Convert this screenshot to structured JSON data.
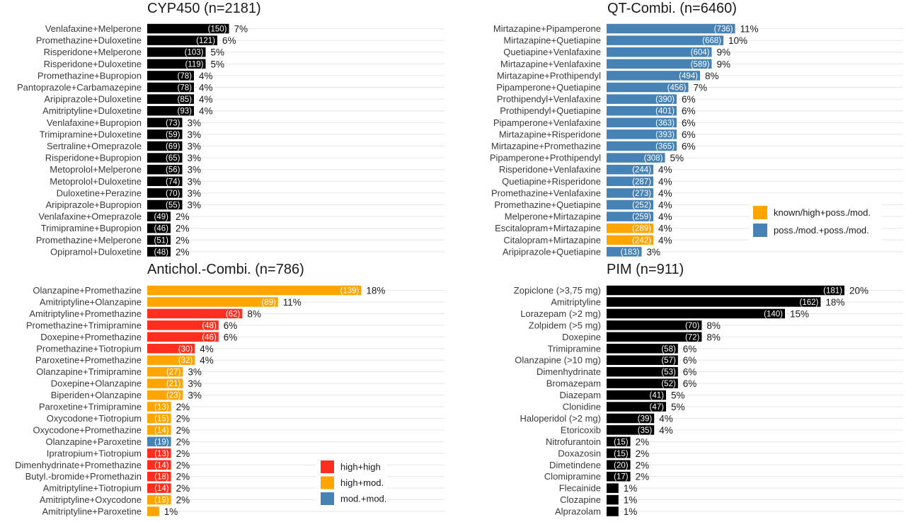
{
  "colors": {
    "black": "#000000",
    "blue": "#4682b4",
    "orange": "#ffa500",
    "red": "#ff2e1f"
  },
  "chart_data": [
    {
      "type": "bar",
      "orientation": "horizontal",
      "title": "CYP450 (n=2181)",
      "grid": true,
      "categories": [
        "Venlafaxine+Melperone",
        "Promethazine+Duloxetine",
        "Risperidone+Melperone",
        "Risperidone+Duloxetine",
        "Promethazine+Bupropion",
        "Pantoprazole+Carbamazepine",
        "Aripiprazole+Duloxetine",
        "Amitriptyline+Duloxetine",
        "Venlafaxine+Bupropion",
        "Trimipramine+Duloxetine",
        "Sertraline+Omeprazole",
        "Risperidone+Bupropion",
        "Metoprolol+Melperone",
        "Metoprolol+Duloxetine",
        "Duloxetine+Perazine",
        "Aripiprazole+Bupropion",
        "Venlafaxine+Omeprazole",
        "Trimipramine+Bupropion",
        "Promethazine+Melperone",
        "Opipramol+Duloxetine"
      ],
      "counts": [
        150,
        121,
        103,
        119,
        78,
        78,
        85,
        93,
        73,
        59,
        69,
        65,
        56,
        74,
        70,
        55,
        49,
        46,
        51,
        48
      ],
      "percent_labels": [
        "7%",
        "6%",
        "5%",
        "5%",
        "4%",
        "4%",
        "4%",
        "4%",
        "3%",
        "3%",
        "3%",
        "3%",
        "3%",
        "3%",
        "3%",
        "3%",
        "2%",
        "2%",
        "2%",
        "2%"
      ],
      "values": [
        7,
        6,
        5,
        5,
        4,
        4,
        4,
        4,
        3,
        3,
        3,
        3,
        3,
        3,
        3,
        3,
        2,
        2,
        2,
        2
      ],
      "color_keys": [
        "black",
        "black",
        "black",
        "black",
        "black",
        "black",
        "black",
        "black",
        "black",
        "black",
        "black",
        "black",
        "black",
        "black",
        "black",
        "black",
        "black",
        "black",
        "black",
        "black"
      ],
      "legend": null
    },
    {
      "type": "bar",
      "orientation": "horizontal",
      "title": "QT-Combi. (n=6460)",
      "grid": true,
      "categories": [
        "Mirtazapine+Pipamperone",
        "Mirtazapine+Quetiapine",
        "Quetiapine+Venlafaxine",
        "Mirtazapine+Venlafaxine",
        "Mirtazapine+Prothipendyl",
        "Pipamperone+Quetiapine",
        "Prothipendyl+Venlafaxine",
        "Prothipendyl+Quetiapine",
        "Pipamperone+Venlafaxine",
        "Mirtazapine+Risperidone",
        "Mirtazapine+Promethazine",
        "Pipamperone+Prothipendyl",
        "Risperidone+Venlafaxine",
        "Quetiapine+Risperidone",
        "Promethazine+Venlafaxine",
        "Promethazine+Quetiapine",
        "Melperone+Mirtazapine",
        "Escitalopram+Mirtazapine",
        "Citalopram+Mirtazapine",
        "Aripiprazole+Quetiapine"
      ],
      "counts": [
        736,
        668,
        604,
        589,
        494,
        456,
        390,
        401,
        363,
        393,
        365,
        308,
        244,
        287,
        273,
        252,
        259,
        289,
        242,
        183
      ],
      "percent_labels": [
        "11%",
        "10%",
        "9%",
        "9%",
        "8%",
        "7%",
        "6%",
        "6%",
        "6%",
        "6%",
        "6%",
        "5%",
        "4%",
        "4%",
        "4%",
        "4%",
        "4%",
        "4%",
        "4%",
        "3%"
      ],
      "values": [
        11,
        10,
        9,
        9,
        8,
        7,
        6,
        6,
        6,
        6,
        6,
        5,
        4,
        4,
        4,
        4,
        4,
        4,
        4,
        3
      ],
      "color_keys": [
        "blue",
        "blue",
        "blue",
        "blue",
        "blue",
        "blue",
        "blue",
        "blue",
        "blue",
        "blue",
        "blue",
        "blue",
        "blue",
        "blue",
        "blue",
        "blue",
        "blue",
        "orange",
        "orange",
        "blue"
      ],
      "legend": {
        "placement": "right-middle",
        "entries": [
          {
            "label": "known/high+poss./mod.",
            "color_key": "orange"
          },
          {
            "label": "poss./mod.+poss./mod.",
            "color_key": "blue"
          }
        ]
      }
    },
    {
      "type": "bar",
      "orientation": "horizontal",
      "title": "Antichol.-Combi. (n=786)",
      "grid": true,
      "categories": [
        "Olanzapine+Promethazine",
        "Amitriptyline+Olanzapine",
        "Amitriptyline+Promethazine",
        "Promethazine+Trimipramine",
        "Doxepine+Promethazine",
        "Promethazine+Tiotropium",
        "Paroxetine+Promethazine",
        "Olanzapine+Trimipramine",
        "Doxepine+Olanzapine",
        "Biperiden+Olanzapine",
        "Paroxetine+Trimipramine",
        "Oxycodone+Tiotropium",
        "Oxycodone+Promethazine",
        "Olanzapine+Paroxetine",
        "Ipratropium+Tiotropium",
        "Dimenhydrinate+Promethazine",
        "Butyl.-bromide+Promethazin",
        "Amitriptyline+Tiotropium",
        "Amitriptyline+Oxycodone",
        "Amitriptyline+Paroxetine"
      ],
      "counts": [
        139,
        89,
        62,
        48,
        46,
        30,
        32,
        27,
        21,
        23,
        13,
        15,
        14,
        19,
        13,
        14,
        18,
        14,
        19,
        null
      ],
      "percent_labels": [
        "18%",
        "11%",
        "8%",
        "6%",
        "6%",
        "4%",
        "4%",
        "3%",
        "3%",
        "3%",
        "2%",
        "2%",
        "2%",
        "2%",
        "2%",
        "2%",
        "2%",
        "2%",
        "2%",
        "1%"
      ],
      "values": [
        18,
        11,
        8,
        6,
        6,
        4,
        4,
        3,
        3,
        3,
        2,
        2,
        2,
        2,
        2,
        2,
        2,
        2,
        2,
        1
      ],
      "color_keys": [
        "orange",
        "orange",
        "red",
        "red",
        "red",
        "red",
        "orange",
        "orange",
        "orange",
        "orange",
        "orange",
        "orange",
        "orange",
        "blue",
        "red",
        "red",
        "red",
        "red",
        "orange",
        "orange"
      ],
      "legend": {
        "placement": "right-bottom",
        "entries": [
          {
            "label": "high+high",
            "color_key": "red"
          },
          {
            "label": "high+mod.",
            "color_key": "orange"
          },
          {
            "label": "mod.+mod.",
            "color_key": "blue"
          }
        ]
      }
    },
    {
      "type": "bar",
      "orientation": "horizontal",
      "title": "PIM (n=911)",
      "grid": true,
      "categories": [
        "Zopiclone (>3,75 mg)",
        "Amitriptyline",
        "Lorazepam (>2 mg)",
        "Zolpidem (>5 mg)",
        "Doxepine",
        "Trimipramine",
        "Olanzapine (>10 mg)",
        "Dimenhydrinate",
        "Bromazepam",
        "Diazepam",
        "Clonidine",
        "Haloperidol (>2 mg)",
        "Etoricoxib",
        "Nitrofurantoin",
        "Doxazosin",
        "Dimetindene",
        "Clomipramine",
        "Flecainide",
        "Clozapine",
        "Alprazolam"
      ],
      "counts": [
        181,
        162,
        140,
        70,
        72,
        58,
        57,
        53,
        52,
        41,
        47,
        39,
        35,
        15,
        15,
        20,
        17,
        null,
        null,
        null
      ],
      "percent_labels": [
        "20%",
        "18%",
        "15%",
        "8%",
        "8%",
        "6%",
        "6%",
        "6%",
        "6%",
        "5%",
        "5%",
        "4%",
        "4%",
        "2%",
        "2%",
        "2%",
        "2%",
        "1%",
        "1%",
        "1%"
      ],
      "values": [
        20,
        18,
        15,
        8,
        8,
        6,
        6,
        6,
        6,
        5,
        5,
        4,
        4,
        2,
        2,
        2,
        2,
        1,
        1,
        1
      ],
      "color_keys": [
        "black",
        "black",
        "black",
        "black",
        "black",
        "black",
        "black",
        "black",
        "black",
        "black",
        "black",
        "black",
        "black",
        "black",
        "black",
        "black",
        "black",
        "black",
        "black",
        "black"
      ],
      "legend": null
    }
  ]
}
